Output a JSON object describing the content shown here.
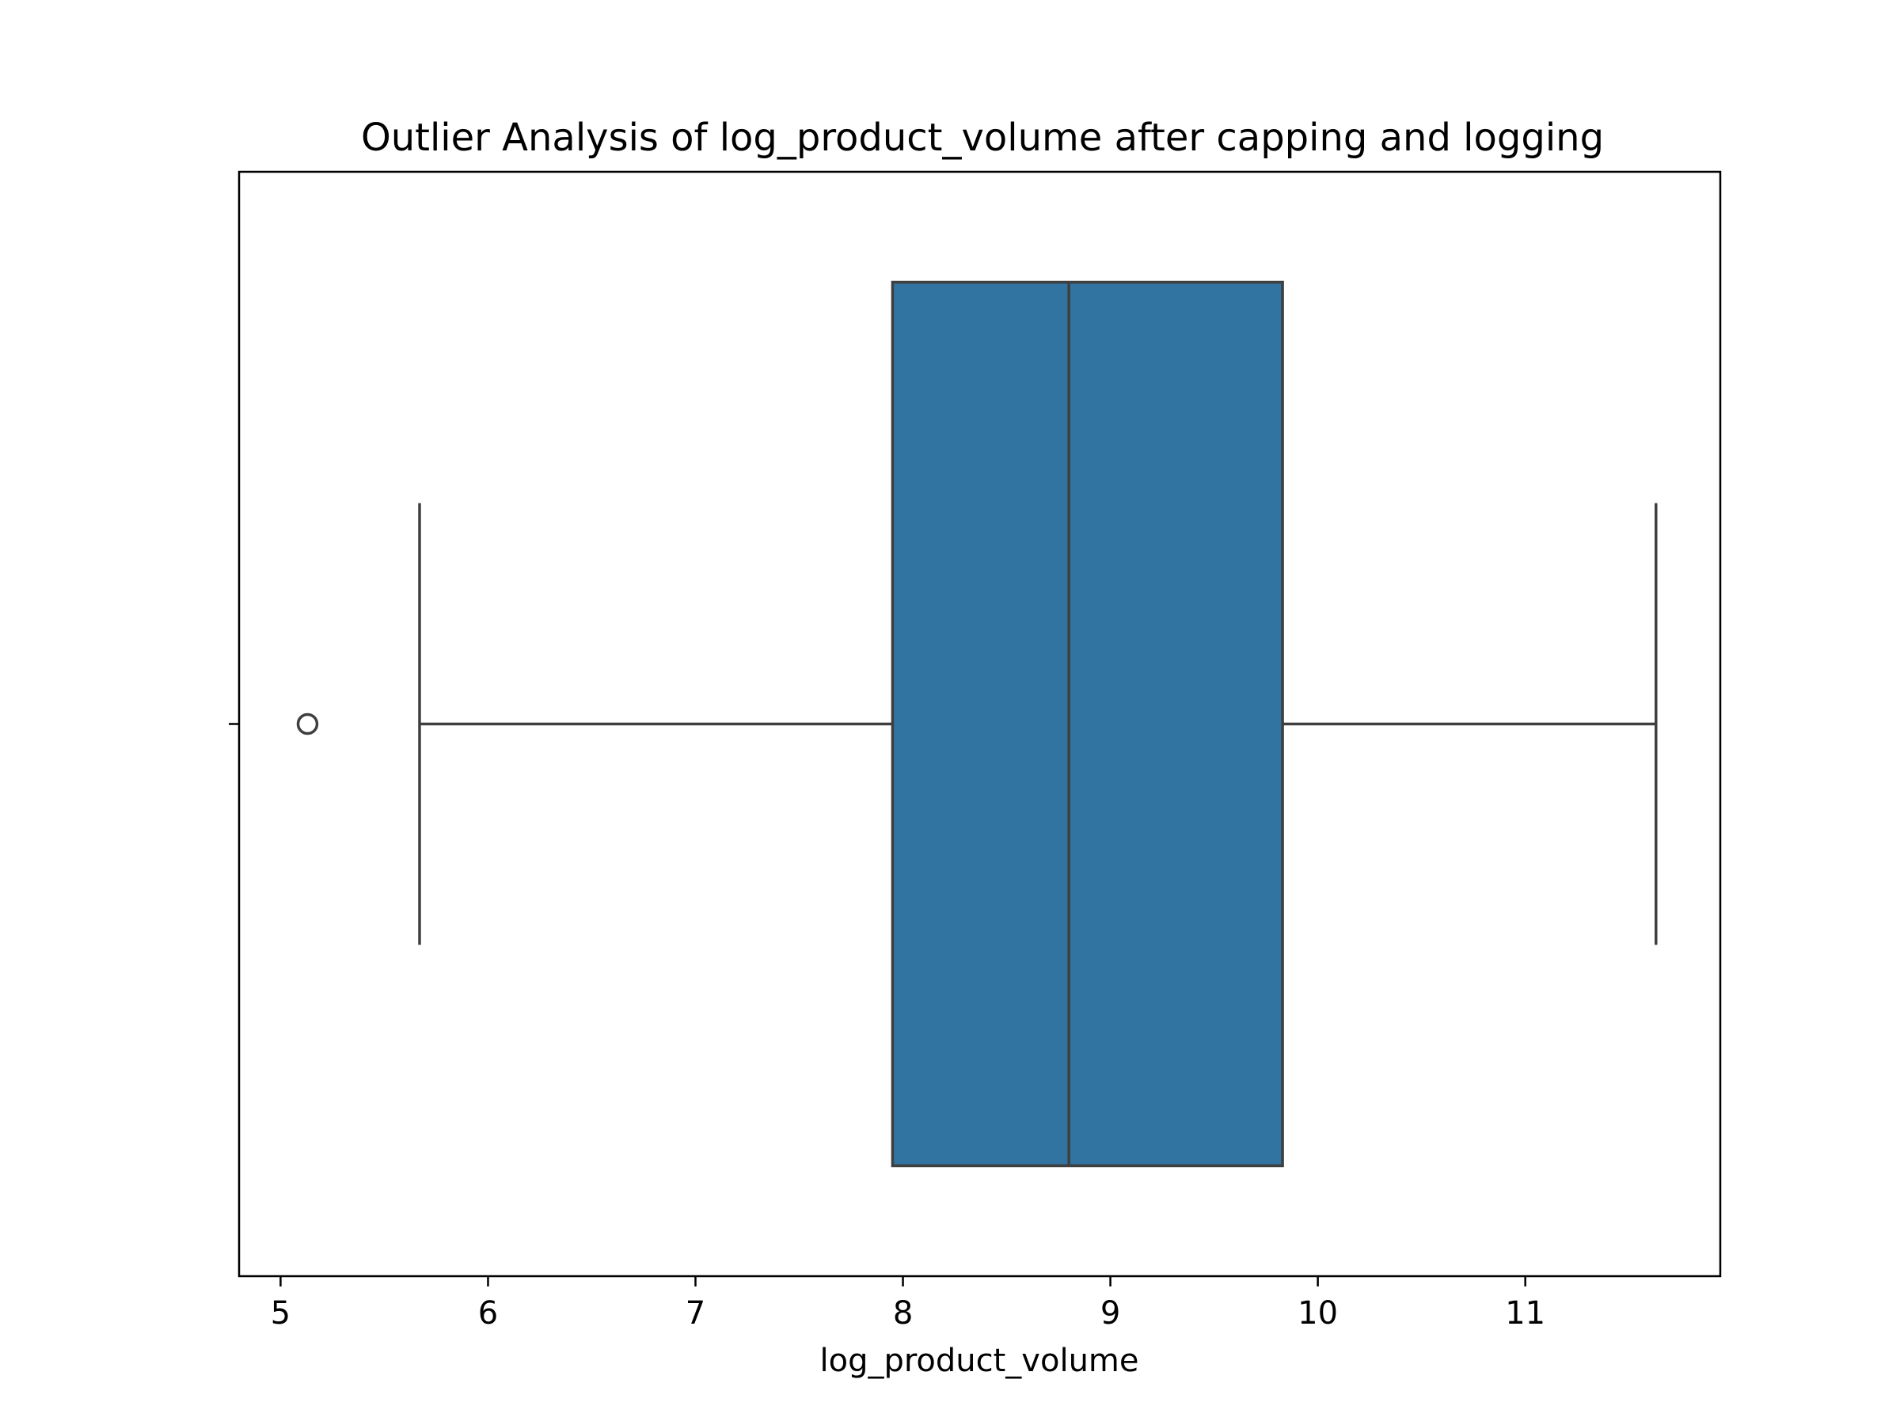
{
  "chart_data": {
    "type": "box",
    "title": "Outlier Analysis of log_product_volume after capping and logging",
    "xlabel": "log_product_volume",
    "ylabel": "",
    "xlim": [
      4.8,
      11.94
    ],
    "xticks": [
      5,
      6,
      7,
      8,
      9,
      10,
      11
    ],
    "grid": false,
    "box": {
      "whisker_low": 5.67,
      "q1": 7.95,
      "median": 8.8,
      "q3": 9.83,
      "whisker_high": 11.63,
      "outliers": [
        5.13
      ]
    },
    "colors": {
      "box_fill": "#3274a1",
      "line": "#3f3f3f",
      "axes": "#000000"
    }
  }
}
